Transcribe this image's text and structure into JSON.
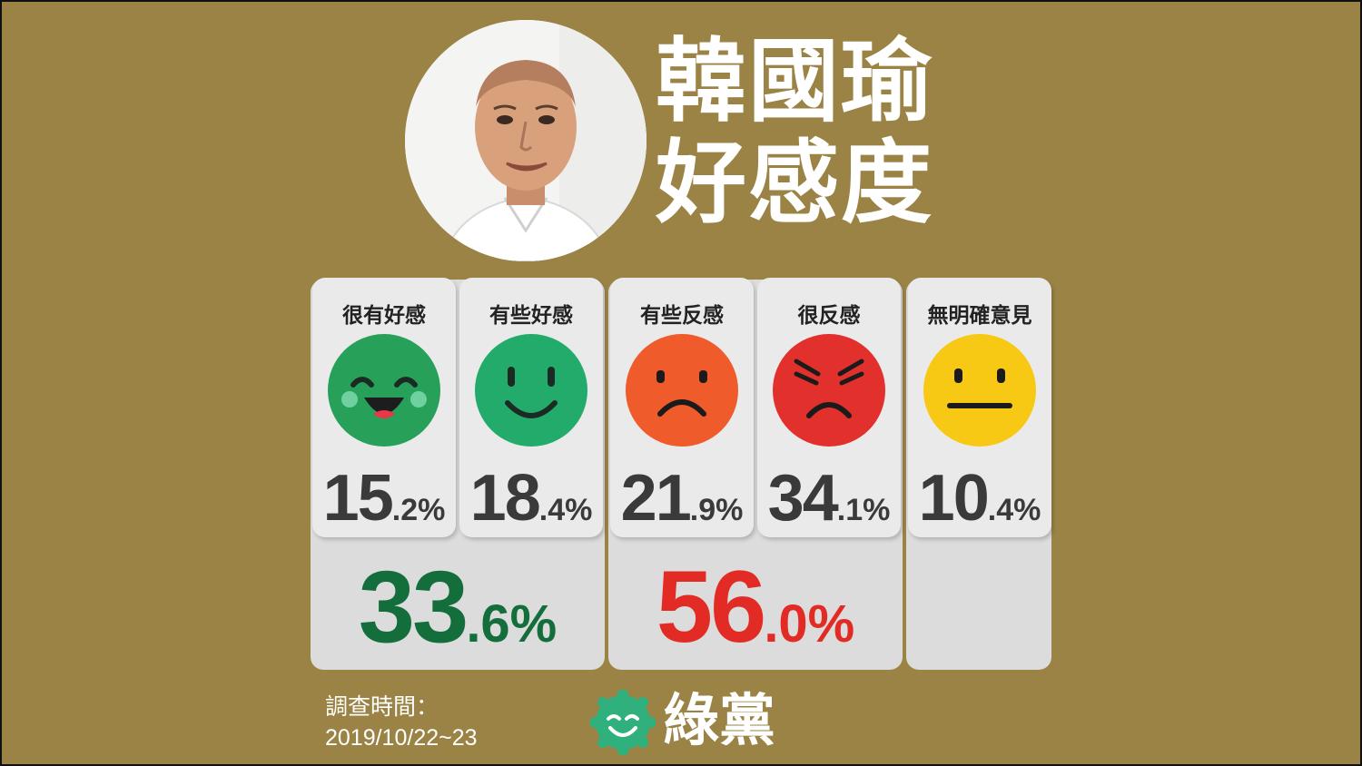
{
  "title": {
    "line1": "韓國瑜",
    "line2": "好感度"
  },
  "chart_data": {
    "type": "table",
    "categories": [
      "很有好感",
      "有些好感",
      "有些反感",
      "很反感",
      "無明確意見"
    ],
    "values": [
      15.2,
      18.4,
      21.9,
      34.1,
      10.4
    ],
    "value_labels": [
      {
        "int": "15",
        "dec": ".2%"
      },
      {
        "int": "18",
        "dec": ".4%"
      },
      {
        "int": "21",
        "dec": ".9%"
      },
      {
        "int": "34",
        "dec": ".1%"
      },
      {
        "int": "10",
        "dec": ".4%"
      }
    ],
    "face_colors": [
      "#27a05a",
      "#22ab6a",
      "#ef5b2b",
      "#e2302c",
      "#f7c914"
    ],
    "face_icons": [
      "laughing-face-icon",
      "smiling-face-icon",
      "sad-face-icon",
      "angry-face-icon",
      "neutral-face-icon"
    ],
    "totals": [
      {
        "value": 33.6,
        "int": "33",
        "dec": ".6%",
        "color": "#146e3c"
      },
      {
        "value": 56.0,
        "int": "56",
        "dec": ".0%",
        "color": "#e32b26"
      }
    ]
  },
  "survey": {
    "label": "調查時間：",
    "date": "2019/10/22~23"
  },
  "logo": {
    "text": "綠黨",
    "color": "#2fb07c"
  }
}
